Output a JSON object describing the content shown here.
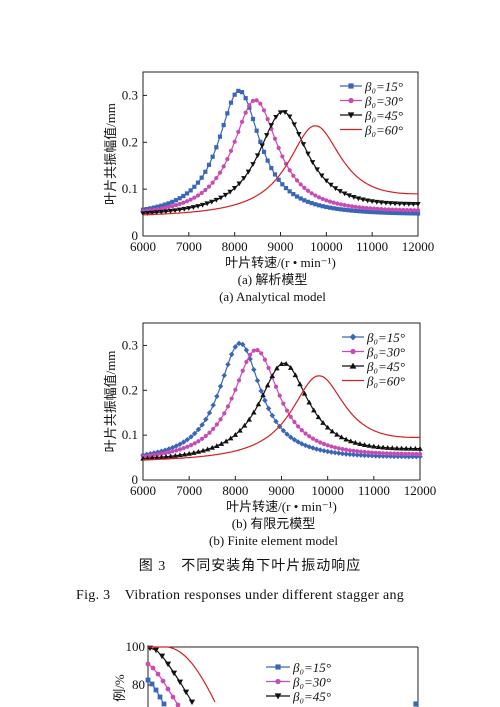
{
  "figure": {
    "caption_cn": "图 3　不同安装角下叶片振动响应",
    "caption_en": "Fig. 3　Vibration responses under different stagger ang"
  },
  "chart_data": [
    {
      "type": "line",
      "panel_label": "(a) 解析模型",
      "panel_label_en": "(a) Analytical model",
      "xlabel": "叶片转速/(r • min⁻¹)",
      "ylabel": "叶片共振幅值/mm",
      "xlim": [
        6000,
        12000
      ],
      "ylim": [
        0,
        0.35
      ],
      "xticks": [
        "6000",
        "7000",
        "8000",
        "9000",
        "10000",
        "11000",
        "12000"
      ],
      "yticks": [
        "0",
        "0.1",
        "0.2",
        "0.3"
      ],
      "legend_position": "top-right",
      "series": [
        {
          "name": "β₀=15°",
          "color": "#3a66b8",
          "marker": "square",
          "peak_x": 8100,
          "peak_y": 0.31,
          "width": 560,
          "end_y": 0.048
        },
        {
          "name": "β₀=30°",
          "color": "#c84ab4",
          "marker": "circle",
          "peak_x": 8450,
          "peak_y": 0.29,
          "width": 610,
          "end_y": 0.055
        },
        {
          "name": "β₀=45°",
          "color": "#111111",
          "marker": "triangle-down",
          "peak_x": 9050,
          "peak_y": 0.265,
          "width": 660,
          "end_y": 0.068
        },
        {
          "name": "β₀=60°",
          "color": "#d42020",
          "marker": "none",
          "peak_x": 9750,
          "peak_y": 0.235,
          "width": 720,
          "end_y": 0.09
        }
      ]
    },
    {
      "type": "line",
      "panel_label": "(b) 有限元模型",
      "panel_label_en": "(b) Finite element model",
      "xlabel": "叶片转速/(r • min⁻¹)",
      "ylabel": "叶片共振幅值/mm",
      "xlim": [
        6000,
        12000
      ],
      "ylim": [
        0,
        0.35
      ],
      "xticks": [
        "6000",
        "7000",
        "8000",
        "9000",
        "10000",
        "11000",
        "12000"
      ],
      "yticks": [
        "0",
        "0.1",
        "0.2",
        "0.3"
      ],
      "legend_position": "top-right",
      "series": [
        {
          "name": "β₀=15°",
          "color": "#3a66b8",
          "marker": "diamond",
          "peak_x": 8100,
          "peak_y": 0.305,
          "width": 560,
          "end_y": 0.052
        },
        {
          "name": "β₀=30°",
          "color": "#c84ab4",
          "marker": "circle",
          "peak_x": 8450,
          "peak_y": 0.29,
          "width": 610,
          "end_y": 0.058
        },
        {
          "name": "β₀=45°",
          "color": "#111111",
          "marker": "triangle-up",
          "peak_x": 9050,
          "peak_y": 0.26,
          "width": 660,
          "end_y": 0.07
        },
        {
          "name": "β₀=60°",
          "color": "#d42020",
          "marker": "none",
          "peak_x": 9800,
          "peak_y": 0.232,
          "width": 720,
          "end_y": 0.095
        }
      ]
    },
    {
      "type": "line",
      "partial": true,
      "ylabel": "例/%",
      "ylim": [
        0,
        100
      ],
      "yticks": [
        "100",
        "80"
      ],
      "legend_position": "top-center",
      "series": [
        {
          "name": "β₀=15°",
          "color": "#3a66b8",
          "marker": "square"
        },
        {
          "name": "β₀=30°",
          "color": "#c84ab4",
          "marker": "circle"
        },
        {
          "name": "β₀=45°",
          "color": "#111111",
          "marker": "triangle-down"
        }
      ]
    }
  ]
}
